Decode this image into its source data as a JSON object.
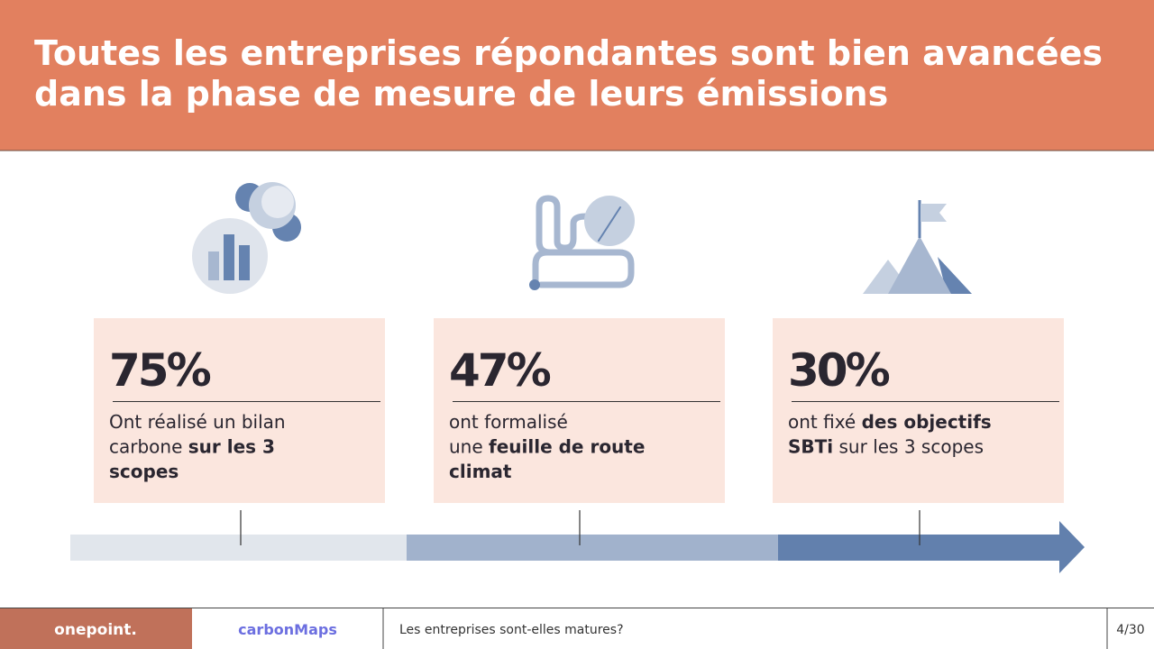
{
  "header": {
    "title_lines": [
      "Toutes les entreprises répondantes sont bien avancées",
      "dans la phase de mesure de leurs émissions"
    ]
  },
  "cards": [
    {
      "stat": "75%",
      "lines": [
        [
          {
            "text": "Ont réalisé un bilan",
            "bold": false
          }
        ],
        [
          {
            "text": "carbone ",
            "bold": false
          },
          {
            "text": "sur les 3",
            "bold": true
          }
        ],
        [
          {
            "text": "scopes",
            "bold": true
          }
        ]
      ]
    },
    {
      "stat": "47%",
      "lines": [
        [
          {
            "text": "ont formalisé",
            "bold": false
          }
        ],
        [
          {
            "text": "une ",
            "bold": false
          },
          {
            "text": "feuille de route",
            "bold": true
          }
        ],
        [
          {
            "text": "climat",
            "bold": true
          }
        ]
      ]
    },
    {
      "stat": "30%",
      "lines": [
        [
          {
            "text": "ont fixé ",
            "bold": false
          },
          {
            "text": "des objectifs",
            "bold": true
          }
        ],
        [
          {
            "text": "SBTi",
            "bold": true
          },
          {
            "text": " sur les 3 scopes",
            "bold": false
          }
        ]
      ]
    }
  ],
  "footer": {
    "logo_left": "onepoint.",
    "logo_right": "carbonMaps",
    "section": "Les entreprises sont-elles matures?",
    "page": "4/30"
  }
}
